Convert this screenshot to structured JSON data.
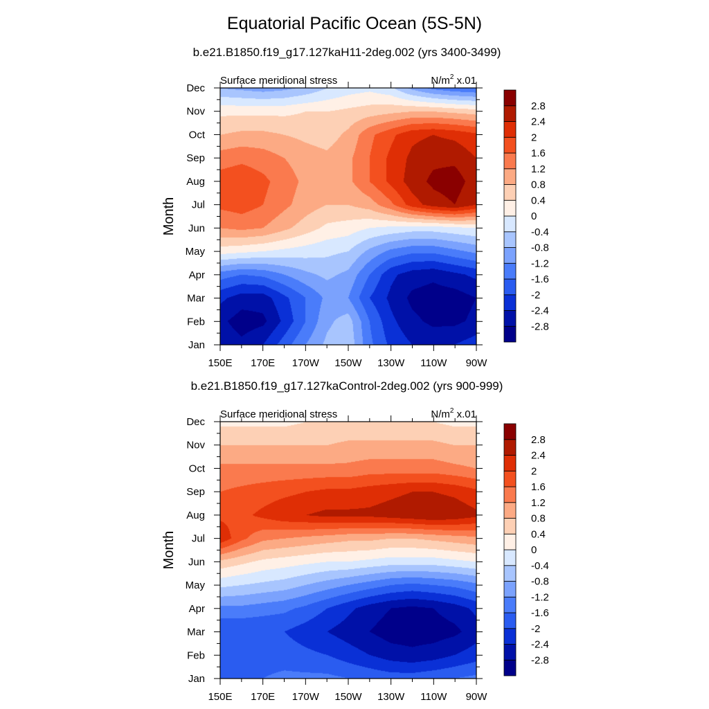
{
  "title": "Equatorial Pacific Ocean (5S-5N)",
  "chart_data": [
    {
      "type": "heatmap",
      "title": "b.e21.B1850.f19_g17.127kaH11-2deg.002 (yrs 3400-3499)",
      "left_label": "Surface meridional stress",
      "units_base": "N/m",
      "units_exp": "2",
      "units_scale": "x.01",
      "xlabel": "",
      "ylabel": "Month",
      "xticks": [
        "150E",
        "170E",
        "170W",
        "150W",
        "130W",
        "110W",
        "90W"
      ],
      "xlim_lon": [
        150,
        270
      ],
      "yticks": [
        "Jan",
        "Feb",
        "Mar",
        "Apr",
        "May",
        "Jun",
        "Jul",
        "Aug",
        "Sep",
        "Oct",
        "Nov",
        "Dec"
      ],
      "colorbar_labels": [
        "2.8",
        "2.4",
        "2",
        "1.6",
        "1.2",
        "0.8",
        "0.4",
        "0",
        "-0.4",
        "-0.8",
        "-1.2",
        "-1.6",
        "-2",
        "-2.4",
        "-2.8"
      ],
      "levels": [
        -2.8,
        -2.4,
        -2.0,
        -1.6,
        -1.2,
        -0.8,
        -0.4,
        0,
        0.4,
        0.8,
        1.2,
        1.6,
        2.0,
        2.4,
        2.8
      ],
      "colors": [
        "#00008a",
        "#0011a8",
        "#0a30d6",
        "#2a5cf0",
        "#4a7cfa",
        "#7ba2fd",
        "#a8c5fe",
        "#d8e8ff",
        "#fff0e6",
        "#fdd0b5",
        "#fcaa84",
        "#fa7a4e",
        "#f3501f",
        "#df2e05",
        "#b01a00",
        "#8a0000"
      ],
      "x_lon": [
        150,
        160,
        170,
        180,
        190,
        200,
        210,
        220,
        230,
        240,
        250,
        260,
        270
      ],
      "z": [
        [
          -2.5,
          -2.7,
          -2.4,
          -1.8,
          -1.2,
          -0.7,
          -0.5,
          -1.5,
          -2.1,
          -2.4,
          -2.5,
          -2.4,
          -2.2
        ],
        [
          -2.7,
          -3.0,
          -2.9,
          -2.3,
          -1.6,
          -0.9,
          -0.6,
          -1.6,
          -2.3,
          -2.7,
          -2.9,
          -2.9,
          -2.7
        ],
        [
          -2.3,
          -2.6,
          -2.6,
          -2.1,
          -1.6,
          -1.1,
          -1.2,
          -2.0,
          -2.5,
          -2.9,
          -3.0,
          -3.0,
          -2.8
        ],
        [
          -1.4,
          -1.6,
          -1.5,
          -1.2,
          -0.9,
          -0.7,
          -0.9,
          -1.6,
          -2.3,
          -2.6,
          -2.7,
          -2.5,
          -2.3
        ],
        [
          0.2,
          0.1,
          0.0,
          -0.1,
          -0.2,
          -0.3,
          -0.4,
          -0.9,
          -1.3,
          -1.5,
          -1.5,
          -1.3,
          -1.1
        ],
        [
          1.2,
          1.3,
          1.2,
          0.9,
          0.6,
          0.3,
          0.2,
          0.0,
          -0.1,
          -0.2,
          -0.2,
          -0.1,
          0.0
        ],
        [
          1.7,
          1.8,
          1.6,
          1.3,
          1.0,
          0.8,
          0.8,
          1.0,
          1.5,
          2.2,
          2.6,
          2.8,
          2.4
        ],
        [
          1.8,
          1.9,
          1.7,
          1.4,
          1.1,
          1.0,
          1.1,
          1.6,
          2.1,
          2.6,
          2.9,
          3.0,
          2.6
        ],
        [
          1.4,
          1.5,
          1.4,
          1.2,
          1.0,
          0.9,
          1.1,
          1.6,
          2.1,
          2.5,
          2.7,
          2.7,
          2.4
        ],
        [
          0.8,
          0.9,
          0.9,
          0.8,
          0.7,
          0.6,
          0.9,
          1.5,
          1.9,
          2.3,
          2.4,
          2.3,
          2.1
        ],
        [
          0.3,
          0.3,
          0.3,
          0.3,
          0.4,
          0.4,
          0.5,
          0.6,
          0.7,
          0.8,
          0.8,
          0.7,
          0.6
        ],
        [
          -0.8,
          -0.9,
          -1.0,
          -0.9,
          -0.7,
          -0.4,
          -0.2,
          -0.1,
          -0.3,
          -0.9,
          -1.3,
          -1.5,
          -1.6
        ]
      ]
    },
    {
      "type": "heatmap",
      "title": "b.e21.B1850.f19_g17.127kaControl-2deg.002 (yrs 900-999)",
      "left_label": "Surface meridional stress",
      "units_base": "N/m",
      "units_exp": "2",
      "units_scale": "x.01",
      "xlabel": "",
      "ylabel": "Month",
      "xticks": [
        "150E",
        "170E",
        "170W",
        "150W",
        "130W",
        "110W",
        "90W"
      ],
      "xlim_lon": [
        150,
        270
      ],
      "yticks": [
        "Jan",
        "Feb",
        "Mar",
        "Apr",
        "May",
        "Jun",
        "Jul",
        "Aug",
        "Sep",
        "Oct",
        "Nov",
        "Dec"
      ],
      "colorbar_labels": [
        "2.8",
        "2.4",
        "2",
        "1.6",
        "1.2",
        "0.8",
        "0.4",
        "0",
        "-0.4",
        "-0.8",
        "-1.2",
        "-1.6",
        "-2",
        "-2.4",
        "-2.8"
      ],
      "levels": [
        -2.8,
        -2.4,
        -2.0,
        -1.6,
        -1.2,
        -0.8,
        -0.4,
        0,
        0.4,
        0.8,
        1.2,
        1.6,
        2.0,
        2.4,
        2.8
      ],
      "colors": [
        "#00008a",
        "#0011a8",
        "#0a30d6",
        "#2a5cf0",
        "#4a7cfa",
        "#7ba2fd",
        "#a8c5fe",
        "#d8e8ff",
        "#fff0e6",
        "#fdd0b5",
        "#fcaa84",
        "#fa7a4e",
        "#f3501f",
        "#df2e05",
        "#b01a00",
        "#8a0000"
      ],
      "x_lon": [
        150,
        160,
        170,
        180,
        190,
        200,
        210,
        220,
        230,
        240,
        250,
        260,
        270
      ],
      "z": [
        [
          -1.7,
          -1.7,
          -1.6,
          -1.5,
          -1.5,
          -1.5,
          -1.6,
          -1.7,
          -1.8,
          -1.8,
          -1.7,
          -1.6,
          -1.5
        ],
        [
          -1.9,
          -1.9,
          -1.8,
          -1.8,
          -1.9,
          -2.0,
          -2.2,
          -2.4,
          -2.6,
          -2.7,
          -2.6,
          -2.4,
          -2.2
        ],
        [
          -2.0,
          -2.0,
          -2.0,
          -2.0,
          -2.2,
          -2.4,
          -2.6,
          -2.8,
          -3.0,
          -3.0,
          -3.0,
          -2.9,
          -2.6
        ],
        [
          -1.3,
          -1.3,
          -1.4,
          -1.5,
          -1.7,
          -2.0,
          -2.3,
          -2.6,
          -2.8,
          -2.9,
          -2.8,
          -2.6,
          -2.3
        ],
        [
          -0.3,
          -0.4,
          -0.5,
          -0.6,
          -0.8,
          -1.0,
          -1.2,
          -1.4,
          -1.6,
          -1.7,
          -1.6,
          -1.5,
          -1.3
        ],
        [
          0.7,
          0.5,
          0.3,
          0.2,
          0.1,
          0.0,
          0.0,
          -0.1,
          -0.2,
          -0.2,
          -0.2,
          -0.1,
          0.0
        ],
        [
          2.3,
          1.7,
          1.3,
          1.2,
          1.1,
          1.0,
          0.9,
          0.9,
          0.8,
          0.8,
          0.9,
          1.0,
          1.1
        ],
        [
          1.9,
          1.9,
          2.1,
          2.3,
          2.4,
          2.5,
          2.5,
          2.5,
          2.6,
          2.7,
          2.8,
          2.7,
          2.5
        ],
        [
          1.6,
          1.7,
          1.8,
          1.9,
          2.0,
          2.1,
          2.1,
          2.2,
          2.3,
          2.4,
          2.4,
          2.3,
          2.1
        ],
        [
          1.3,
          1.3,
          1.3,
          1.3,
          1.3,
          1.3,
          1.3,
          1.4,
          1.4,
          1.4,
          1.4,
          1.3,
          1.2
        ],
        [
          0.8,
          0.8,
          0.8,
          0.8,
          0.8,
          0.8,
          0.9,
          0.9,
          0.9,
          0.9,
          0.9,
          0.8,
          0.8
        ],
        [
          0.3,
          0.3,
          0.3,
          0.3,
          0.4,
          0.4,
          0.4,
          0.4,
          0.4,
          0.4,
          0.4,
          0.3,
          0.3
        ]
      ]
    }
  ]
}
